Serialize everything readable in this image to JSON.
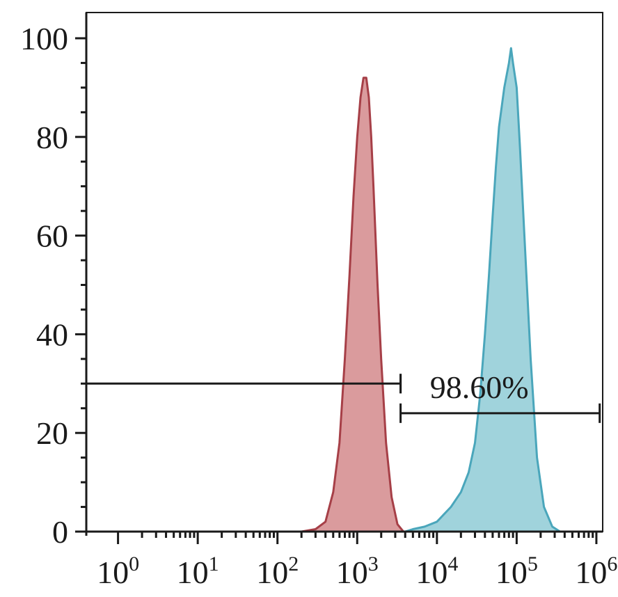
{
  "chart_data": {
    "type": "area",
    "title": "",
    "xlabel": "",
    "ylabel": "",
    "xscale": "log",
    "xlim": [
      0.4,
      1200000
    ],
    "ylim": [
      0,
      100
    ],
    "grid": false,
    "legend": "none",
    "y_ticks": [
      0,
      20,
      40,
      60,
      80,
      100
    ],
    "y_tick_labels": [
      "0",
      "20",
      "40",
      "60",
      "80",
      "100"
    ],
    "x_ticks": [
      1,
      10,
      100,
      1000,
      10000,
      100000,
      1000000
    ],
    "x_tick_bases": [
      "10",
      "10",
      "10",
      "10",
      "10",
      "10",
      "10"
    ],
    "x_tick_exponents": [
      "0",
      "1",
      "2",
      "3",
      "4",
      "5",
      "6"
    ],
    "colors": {
      "red_fill": "#d48a8c",
      "red_stroke": "#a63f47",
      "blue_fill": "#8fcbd6",
      "blue_stroke": "#4aa6bb"
    },
    "series": [
      {
        "color": "red",
        "x": [
          200,
          300,
          400,
          500,
          600,
          700,
          800,
          900,
          1000,
          1100,
          1200,
          1300,
          1400,
          1500,
          1600,
          1800,
          2000,
          2300,
          2700,
          3200,
          3800
        ],
        "y": [
          0,
          0.5,
          2,
          8,
          18,
          35,
          52,
          68,
          80,
          88,
          92,
          92,
          88,
          80,
          70,
          50,
          35,
          18,
          7,
          1.5,
          0
        ]
      },
      {
        "color": "blue",
        "x": [
          4000,
          5000,
          7000,
          10000,
          15000,
          20000,
          25000,
          30000,
          35000,
          40000,
          45000,
          50000,
          55000,
          60000,
          70000,
          80000,
          85000,
          90000,
          100000,
          110000,
          125000,
          150000,
          180000,
          220000,
          280000,
          350000
        ],
        "y": [
          0,
          0.5,
          1,
          2,
          5,
          8,
          12,
          18,
          28,
          40,
          52,
          64,
          74,
          82,
          90,
          95,
          98,
          95,
          90,
          78,
          60,
          35,
          15,
          5,
          1,
          0
        ]
      }
    ],
    "gates": [
      {
        "x_start": 0.4,
        "x_end": 3500,
        "y": 30,
        "label": ""
      },
      {
        "x_start": 3500,
        "x_end": 1100000,
        "y": 24,
        "label": "98.60%"
      }
    ]
  }
}
